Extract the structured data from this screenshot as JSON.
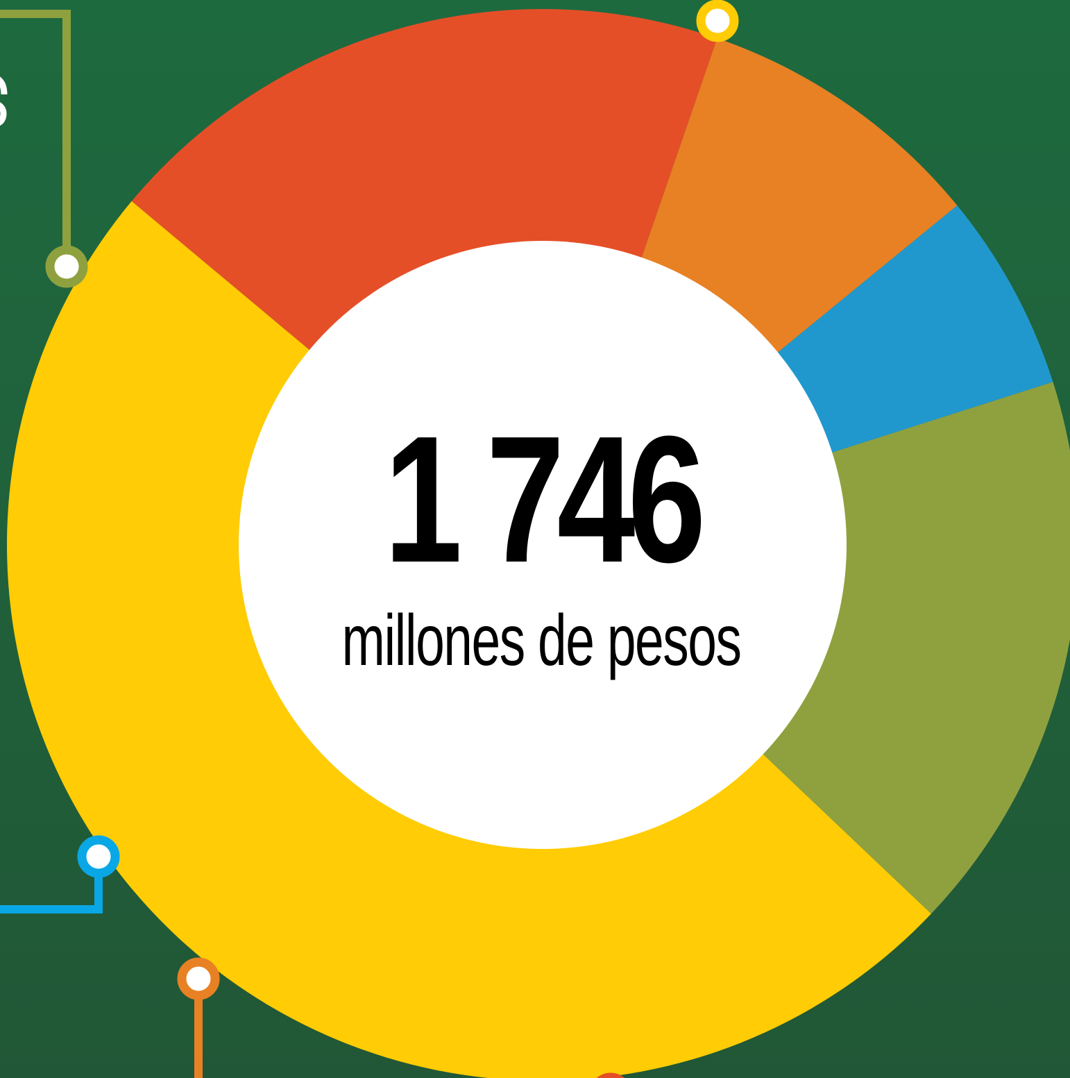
{
  "colors": {
    "background": "#1f6a3e",
    "center_fill": "#ffffff",
    "slice_yellow": "#ffcc05",
    "slice_red": "#e54f28",
    "slice_orange": "#e88124",
    "slice_blue": "#2198cd",
    "slice_olive": "#8fa13f",
    "connector_olive": "#8fa13f",
    "connector_blue": "#0aa7e6",
    "connector_orange": "#e88124",
    "connector_yellow": "#ffcc05"
  },
  "chart_data": {
    "type": "pie",
    "variant": "donut",
    "title": "",
    "total": {
      "value": "1 746",
      "unit": "millones de pesos"
    },
    "slices": [
      {
        "share": 0.49,
        "color": "#ffcc05"
      },
      {
        "share": 0.192,
        "color": "#e54f28"
      },
      {
        "share": 0.088,
        "color": "#e88124"
      },
      {
        "share": 0.06,
        "color": "#2198cd"
      },
      {
        "share": 0.17,
        "color": "#8fa13f"
      }
    ],
    "start_angle_deg": 43.5,
    "legend": "none"
  }
}
